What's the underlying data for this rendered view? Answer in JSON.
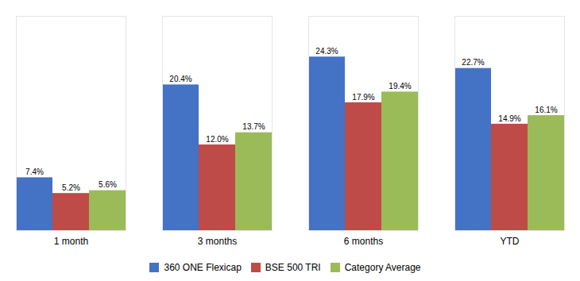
{
  "chart_data": {
    "type": "bar",
    "categories": [
      "1 month",
      "3 months",
      "6 months",
      "YTD"
    ],
    "series": [
      {
        "name": "360 ONE Flexicap",
        "color": "#4472C4",
        "values": [
          7.4,
          20.4,
          24.3,
          22.7
        ],
        "value_labels": [
          "7.4%",
          "20.4%",
          "24.3%",
          "22.7%"
        ]
      },
      {
        "name": "BSE 500 TRI",
        "color": "#BE4B48",
        "values": [
          5.2,
          12.0,
          17.9,
          14.9
        ],
        "value_labels": [
          "5.2%",
          "12.0%",
          "17.9%",
          "14.9%"
        ]
      },
      {
        "name": "Category Average",
        "color": "#9BBB59",
        "values": [
          5.6,
          13.7,
          19.4,
          16.1
        ],
        "value_labels": [
          "5.6%",
          "13.7%",
          "19.4%",
          "16.1%"
        ]
      }
    ],
    "ylim": [
      0,
      30
    ],
    "data_labels": true,
    "tick_labels": "x",
    "grid": false,
    "legend": "bottom"
  }
}
